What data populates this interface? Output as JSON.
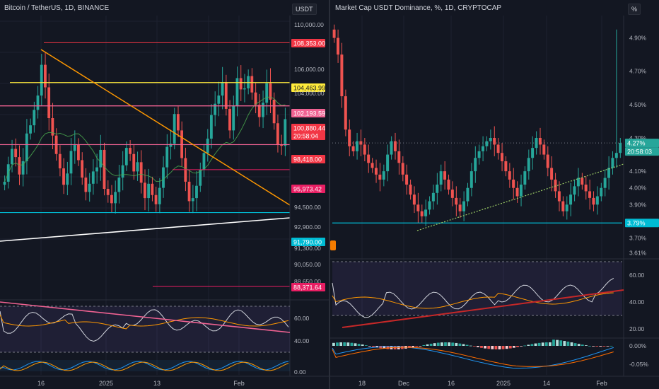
{
  "panes": {
    "left": {
      "title": "Bitcoin / TetherUS, 1D, BINANCE",
      "scale_label": "USDT",
      "price_ticks": [
        "110,000.00",
        "106,000.00",
        "94,500.00",
        "92,900.00",
        "91,300.00",
        "90,050.00",
        "88,650.00"
      ],
      "price_tags": [
        {
          "text": "108,353.00",
          "color": "#f23645"
        },
        {
          "text": "104,463.99",
          "color": "#ffeb3b",
          "dark": true
        },
        {
          "text": "104,000.00",
          "color": "none"
        },
        {
          "text": "102,193.59",
          "color": "#f06292"
        },
        {
          "text": "100,880.44",
          "color": "#f23645"
        },
        {
          "text": "20:58:04",
          "color": "#f23645"
        },
        {
          "text": "98,418.00",
          "color": "#f23645"
        },
        {
          "text": "95,973.42",
          "color": "#e91e63"
        },
        {
          "text": "91,790.00",
          "color": "#00bcd4"
        },
        {
          "text": "88,371.64",
          "color": "#e91e63"
        }
      ],
      "osc_ticks": [
        "60.00",
        "40.00",
        "0.00"
      ],
      "time_labels": [
        "16",
        "2025",
        "13",
        "Feb"
      ]
    },
    "right": {
      "title": "Market Cap USDT Dominance, %, 1D, CRYPTOCAP",
      "scale_label": "%",
      "price_ticks": [
        "4.90%",
        "4.70%",
        "4.50%",
        "4.30%",
        "4.10%",
        "4.00%",
        "3.90%",
        "3.70%",
        "3.61%"
      ],
      "price_tags": [
        {
          "text": "4.27%",
          "color": "#26a69a"
        },
        {
          "text": "20:58:03",
          "color": "#26a69a"
        },
        {
          "text": "3.79%",
          "color": "#00bcd4"
        }
      ],
      "osc_ticks": [
        "60.00",
        "40.00",
        "20.00"
      ],
      "macd_ticks": [
        "0.00%",
        "-0.05%"
      ],
      "time_labels": [
        "18",
        "Dec",
        "16",
        "2025",
        "14",
        "Feb"
      ]
    }
  },
  "chart_data": [
    {
      "type": "candlestick",
      "title": "Bitcoin / TetherUS, 1D, BINANCE",
      "ylim": [
        87000,
        111000
      ],
      "levels": [
        108353,
        104463.99,
        102193.59,
        98418,
        95973.42,
        91790,
        88371.64
      ],
      "last_price": 100880.44,
      "colors": {
        "up": "#26a69a",
        "down": "#ef5350"
      },
      "closes": [
        94800,
        96500,
        98000,
        97200,
        95500,
        96800,
        99500,
        100300,
        101800,
        103200,
        106200,
        104000,
        101000,
        99300,
        97500,
        96100,
        94500,
        95600,
        97800,
        98400,
        96900,
        95200,
        93800,
        94600,
        95800,
        96200,
        97900,
        94100,
        93500,
        92700,
        93800,
        95200,
        96400,
        98100,
        97500,
        95800,
        96700,
        94700,
        93200,
        94600,
        93500,
        92600,
        94200,
        96200,
        98200,
        98500,
        101400,
        99800,
        97100,
        94800,
        92900,
        93200,
        94400,
        96000,
        97600,
        99000,
        101300,
        102400,
        103200,
        104500,
        101900,
        99800,
        102200,
        104900,
        103800,
        103900,
        105100,
        103500,
        102300,
        101100,
        102500,
        104400,
        102800,
        100500,
        98400,
        98300,
        100900
      ]
    },
    {
      "type": "candlestick",
      "title": "Market Cap USDT Dominance, %, 1D, CRYPTOCAP",
      "ylim": [
        3.6,
        5.0
      ],
      "levels": [
        3.79
      ],
      "last_value": 4.27,
      "closes": [
        4.9,
        4.8,
        4.55,
        4.35,
        4.25,
        4.22,
        4.28,
        4.26,
        4.2,
        4.15,
        4.12,
        4.08,
        4.05,
        4.1,
        4.2,
        4.28,
        4.22,
        4.15,
        4.08,
        4.02,
        3.96,
        3.9,
        3.86,
        3.83,
        3.87,
        3.92,
        3.97,
        4.02,
        4.1,
        4.05,
        3.99,
        3.94,
        3.9,
        3.86,
        3.92,
        4.0,
        4.1,
        4.18,
        4.22,
        4.25,
        4.28,
        4.3,
        4.26,
        4.21,
        4.16,
        4.1,
        4.05,
        4.0,
        3.95,
        4.02,
        4.1,
        4.18,
        4.24,
        4.3,
        4.26,
        4.2,
        4.12,
        4.05,
        3.98,
        3.92,
        3.86,
        3.9,
        3.96,
        4.01,
        4.06,
        4.02,
        3.98,
        3.94,
        3.9,
        3.95,
        4.0,
        4.06,
        4.12,
        4.18,
        4.21,
        4.27
      ]
    }
  ],
  "ui": {
    "marker_color": "#f57c00"
  }
}
